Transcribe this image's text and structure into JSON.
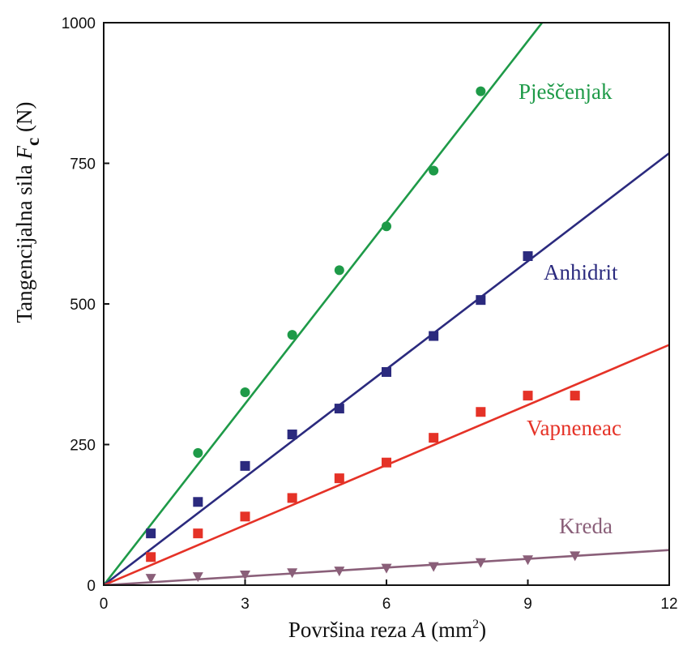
{
  "chart_data": {
    "type": "scatter",
    "xlabel": {
      "pre": "Površina reza ",
      "var": "A",
      "unit_pre": " (mm",
      "sup": "2",
      "unit_post": ")"
    },
    "ylabel": {
      "pre": "Tangencijalna sila ",
      "var": "F",
      "sub": "c",
      "unit": " (N)"
    },
    "xlim": [
      0,
      12
    ],
    "ylim": [
      0,
      1000
    ],
    "xticks": [
      0,
      3,
      6,
      9,
      12
    ],
    "yticks": [
      0,
      250,
      500,
      750,
      1000
    ],
    "grid": false,
    "legend": "inline labels",
    "series": [
      {
        "name": "Pješčenjak",
        "color": "#1e9a48",
        "marker": "circle",
        "x": [
          2,
          3,
          4,
          5,
          6,
          7,
          8
        ],
        "y": [
          235,
          343,
          445,
          560,
          638,
          737,
          878
        ],
        "fit_slope": 107.5
      },
      {
        "name": "Anhidrit",
        "color": "#2b2a7e",
        "marker": "square",
        "x": [
          1,
          2,
          3,
          4,
          5,
          6,
          7,
          8,
          9
        ],
        "y": [
          92,
          148,
          212,
          268,
          314,
          379,
          443,
          507,
          585
        ],
        "fit_slope": 64
      },
      {
        "name": "Vapneneac",
        "color": "#e53227",
        "marker": "square",
        "x": [
          1,
          2,
          3,
          4,
          5,
          6,
          7,
          8,
          9,
          10
        ],
        "y": [
          50,
          92,
          122,
          155,
          190,
          218,
          262,
          308,
          337,
          337
        ],
        "fit_slope": 35.6
      },
      {
        "name": "Kreda",
        "color": "#8a5f79",
        "marker": "triangle-down",
        "x": [
          1,
          2,
          3,
          4,
          5,
          6,
          7,
          8,
          9,
          10
        ],
        "y": [
          12,
          15,
          18,
          22,
          25,
          30,
          33,
          40,
          45,
          52
        ],
        "fit_slope": 5.2
      }
    ]
  }
}
